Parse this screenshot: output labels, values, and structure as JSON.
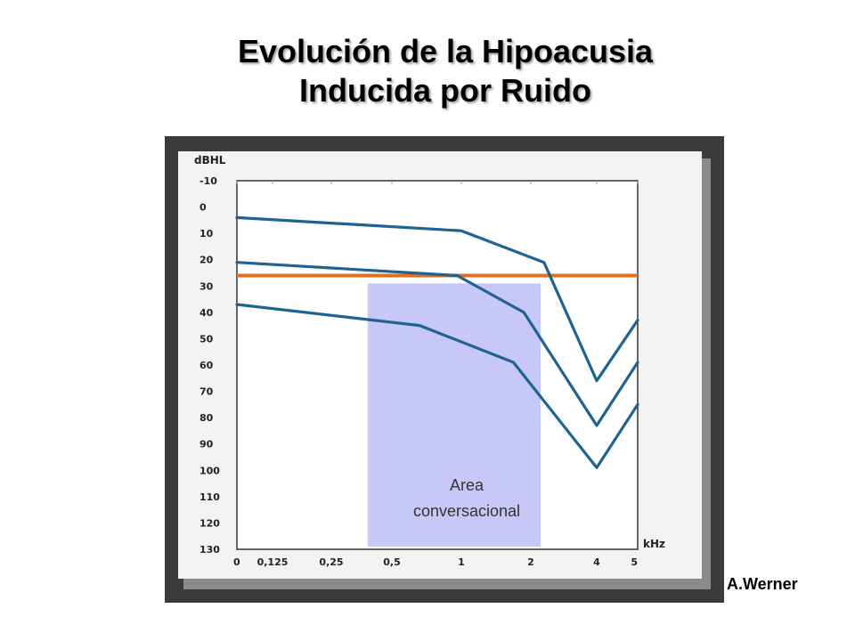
{
  "title": {
    "line1": "Evolución de la Hipoacusia",
    "line2": "Inducida por Ruido"
  },
  "credit": "A.Werner",
  "colors": {
    "curve": "#1f6391",
    "threshold": "#e07020",
    "area_fill": "#c8c8f8",
    "photo_bg": "#3a3a3a",
    "paper": "#f2f2f2"
  },
  "chart_data": {
    "type": "line",
    "ylabel": "dBHL",
    "xlabel": "kHz",
    "y_ticks": [
      "-10",
      "0",
      "10",
      "20",
      "30",
      "40",
      "50",
      "60",
      "70",
      "80",
      "90",
      "100",
      "110",
      "120",
      "130"
    ],
    "x_ticks": [
      "0",
      "0,125",
      "0,25",
      "0,5",
      "1",
      "2",
      "4",
      "5"
    ],
    "ylim": [
      -10,
      130
    ],
    "y_inverted": true,
    "threshold_dB": 26,
    "area": {
      "label_line1": "Area",
      "label_line2": "conversacional",
      "x_from": 0.4,
      "x_to": 2.3,
      "y_from": 29,
      "y_to": 129
    },
    "series": [
      {
        "x": [
          0,
          1,
          2.4,
          4,
          5
        ],
        "y": [
          4,
          9,
          21,
          66,
          43
        ]
      },
      {
        "x": [
          0,
          0.97,
          1.9,
          4,
          5
        ],
        "y": [
          21,
          26,
          40,
          83,
          59
        ]
      },
      {
        "x": [
          0,
          0.7,
          1.75,
          4,
          5
        ],
        "y": [
          37,
          45,
          59,
          99,
          75
        ]
      }
    ]
  }
}
